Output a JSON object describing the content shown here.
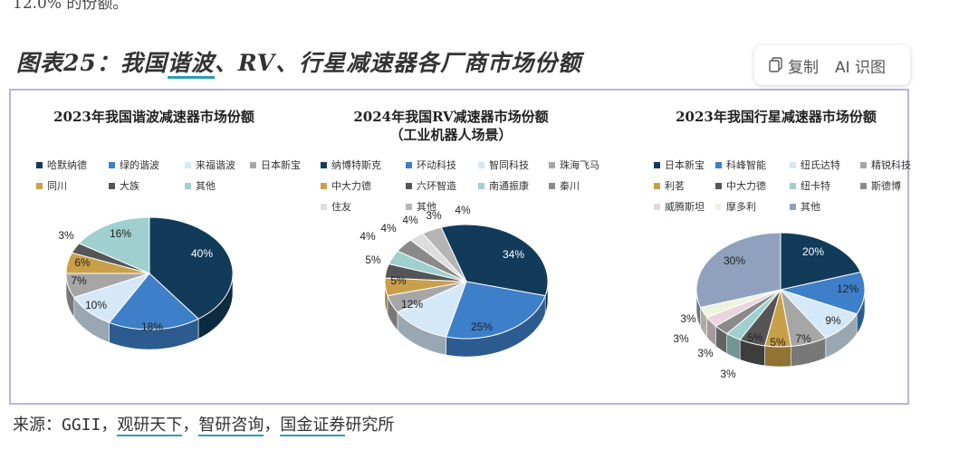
{
  "page": {
    "top_cut_text": "12.0% 的份额。",
    "figure_title_prefix": "图表25：我国",
    "figure_title_highlight": "谐波",
    "figure_title_suffix": "、RV、行星减速器各厂商市场份额"
  },
  "toolbar": {
    "copy_label": "复制",
    "ai_label": "AI 识图"
  },
  "source": {
    "prefix": "来源：GGII，",
    "s1": "观研天下",
    "sep1": "，",
    "s2": "智研咨询",
    "sep2": "，",
    "s3": "国金证券",
    "suffix": "研究所"
  },
  "chart_data": [
    {
      "type": "pie",
      "title": "2023年我国谐波减速器市场份额",
      "subtitle": "",
      "legend": [
        "哈默纳德",
        "绿的谐波",
        "来福谐波",
        "日本新宝",
        "同川",
        "大族",
        "其他"
      ],
      "values": [
        40,
        18,
        10,
        7,
        6,
        3,
        16
      ],
      "labels": [
        "40%",
        "18%",
        "10%",
        "7%",
        "6%",
        "3%",
        "16%"
      ],
      "colors": [
        "#123b5a",
        "#3d7fc8",
        "#d5e8f7",
        "#a6a6a6",
        "#c9a04a",
        "#555555",
        "#9fcfcf"
      ]
    },
    {
      "type": "pie",
      "title": "2024年我国RV减速器市场份额",
      "subtitle": "（工业机器人场景）",
      "legend": [
        "纳博特斯克",
        "环动科技",
        "智同科技",
        "珠海飞马",
        "中大力德",
        "六环智造",
        "南通振康",
        "秦川",
        "住友",
        "其他"
      ],
      "values": [
        34,
        25,
        12,
        5,
        5,
        4,
        4,
        4,
        3,
        4
      ],
      "labels": [
        "34%",
        "25%",
        "12%",
        "5%",
        "5%",
        "4%",
        "4%",
        "4%",
        "3%",
        "4%"
      ],
      "colors": [
        "#123b5a",
        "#3d7fc8",
        "#d5e8f7",
        "#a6a6a6",
        "#c9a04a",
        "#555555",
        "#9fcfcf",
        "#8a8a8a",
        "#dddddd",
        "#b5b5b5"
      ]
    },
    {
      "type": "pie",
      "title": "2023年我国行星减速器市场份额",
      "subtitle": "",
      "legend": [
        "日本新宝",
        "科峰智能",
        "纽氏达特",
        "精锐科技",
        "利茗",
        "中大力德",
        "纽卡特",
        "斯德博",
        "威腾斯坦",
        "摩多利",
        "其他"
      ],
      "values": [
        20,
        12,
        9,
        7,
        5,
        5,
        3,
        3,
        3,
        3,
        30
      ],
      "labels": [
        "20%",
        "12%",
        "9%",
        "7%",
        "5%",
        "5%",
        "3%",
        "3%",
        "3%",
        "3%",
        "30%"
      ],
      "colors": [
        "#123b5a",
        "#3d7fc8",
        "#d5e8f7",
        "#a6a6a6",
        "#c9a04a",
        "#555555",
        "#9fcfcf",
        "#8a8a8a",
        "#e8d6dc",
        "#eef3e0",
        "#8fa1bd"
      ]
    }
  ]
}
